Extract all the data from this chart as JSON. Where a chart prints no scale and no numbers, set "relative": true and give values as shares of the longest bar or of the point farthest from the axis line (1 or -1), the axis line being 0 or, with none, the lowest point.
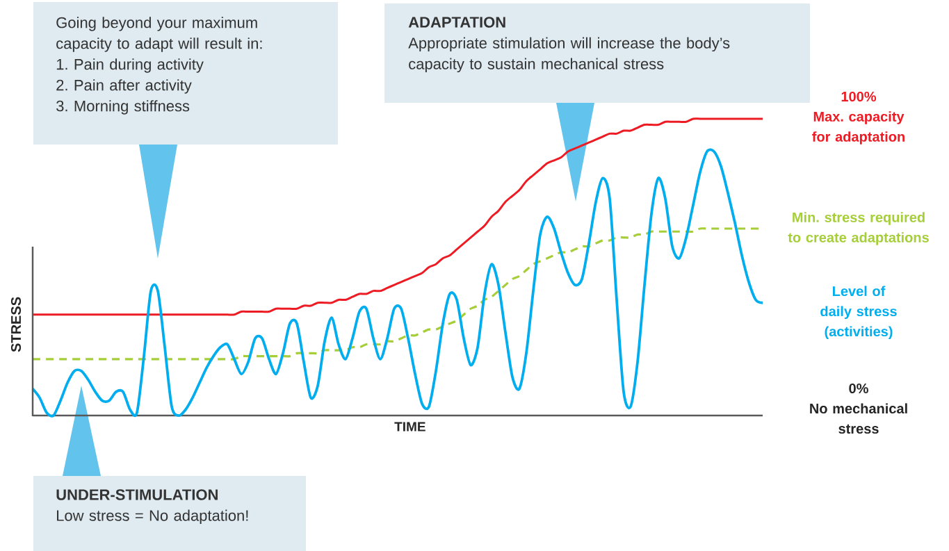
{
  "chart_data": {
    "type": "line",
    "relative": true,
    "xlabel": "TIME",
    "ylabel": "STRESS",
    "categories": [
      null,
      null,
      null,
      null,
      null,
      null,
      null,
      null,
      null,
      null,
      null,
      null,
      null,
      null,
      null,
      null,
      null,
      null,
      null,
      null,
      null,
      null,
      null,
      null,
      null,
      null,
      null,
      null,
      null,
      null,
      null,
      null,
      null,
      null,
      null,
      null,
      null,
      null,
      null,
      null,
      null,
      null,
      null,
      null,
      null,
      null,
      null,
      null,
      null,
      null,
      null,
      null,
      null,
      null,
      null,
      null,
      null,
      null,
      null,
      null,
      null,
      null,
      null,
      null,
      null,
      null,
      null,
      null,
      null,
      null,
      null,
      null,
      null,
      null,
      null,
      null,
      null,
      null,
      null,
      null,
      null,
      null,
      null,
      null,
      null,
      null,
      null,
      null,
      null,
      null,
      null,
      null,
      null,
      null,
      null,
      null,
      null,
      null,
      null,
      null,
      null,
      null,
      null,
      null,
      null,
      null
    ],
    "series": [
      {
        "name": "Max. capacity for adaptation",
        "color": "#ed1c24",
        "values": [
          0.34,
          0.34,
          0.34,
          0.34,
          0.34,
          0.34,
          0.34,
          0.34,
          0.34,
          0.34,
          0.34,
          0.34,
          0.34,
          0.34,
          0.34,
          0.34,
          0.34,
          0.34,
          0.34,
          0.34,
          0.34,
          0.34,
          0.34,
          0.34,
          0.34,
          0.34,
          0.34,
          0.34,
          0.34,
          0.34,
          0.35,
          0.35,
          0.35,
          0.35,
          0.35,
          0.36,
          0.36,
          0.36,
          0.36,
          0.37,
          0.37,
          0.38,
          0.38,
          0.38,
          0.39,
          0.39,
          0.4,
          0.41,
          0.41,
          0.42,
          0.42,
          0.43,
          0.44,
          0.45,
          0.46,
          0.47,
          0.48,
          0.5,
          0.51,
          0.53,
          0.54,
          0.56,
          0.58,
          0.6,
          0.62,
          0.64,
          0.67,
          0.69,
          0.72,
          0.74,
          0.76,
          0.79,
          0.81,
          0.83,
          0.85,
          0.86,
          0.87,
          0.89,
          0.9,
          0.91,
          0.92,
          0.93,
          0.94,
          0.95,
          0.95,
          0.96,
          0.96,
          0.97,
          0.98,
          0.98,
          0.98,
          0.99,
          0.99,
          0.99,
          0.99,
          1.0,
          1.0,
          1.0,
          1.0,
          1.0,
          1.0,
          1.0,
          1.0,
          1.0,
          1.0,
          1.0
        ]
      },
      {
        "name": "Min. stress required to create adaptations",
        "color": "#a6ce39",
        "line_style": "dashed",
        "values": [
          0.19,
          0.19,
          0.19,
          0.19,
          0.19,
          0.19,
          0.19,
          0.19,
          0.19,
          0.19,
          0.19,
          0.19,
          0.19,
          0.19,
          0.19,
          0.19,
          0.19,
          0.19,
          0.19,
          0.19,
          0.19,
          0.19,
          0.19,
          0.19,
          0.19,
          0.19,
          0.19,
          0.19,
          0.19,
          0.19,
          0.2,
          0.2,
          0.2,
          0.2,
          0.2,
          0.2,
          0.2,
          0.2,
          0.21,
          0.21,
          0.21,
          0.21,
          0.22,
          0.22,
          0.22,
          0.22,
          0.23,
          0.23,
          0.24,
          0.24,
          0.24,
          0.25,
          0.25,
          0.26,
          0.27,
          0.27,
          0.28,
          0.29,
          0.29,
          0.3,
          0.31,
          0.32,
          0.34,
          0.36,
          0.37,
          0.39,
          0.4,
          0.42,
          0.44,
          0.46,
          0.47,
          0.49,
          0.51,
          0.52,
          0.53,
          0.54,
          0.55,
          0.55,
          0.56,
          0.57,
          0.57,
          0.58,
          0.59,
          0.59,
          0.6,
          0.6,
          0.6,
          0.61,
          0.61,
          0.62,
          0.62,
          0.62,
          0.62,
          0.62,
          0.62,
          0.62,
          0.63,
          0.63,
          0.63,
          0.63,
          0.63,
          0.63,
          0.63,
          0.63,
          0.63,
          0.63
        ]
      },
      {
        "name": "Level of daily stress (activities)",
        "color": "#00aeef",
        "values": [
          0.09,
          0.06,
          0.01,
          0.0,
          0.05,
          0.11,
          0.15,
          0.15,
          0.12,
          0.08,
          0.05,
          0.05,
          0.08,
          0.08,
          0.02,
          0.01,
          0.2,
          0.42,
          0.42,
          0.23,
          0.03,
          0.0,
          0.02,
          0.06,
          0.11,
          0.16,
          0.2,
          0.23,
          0.24,
          0.19,
          0.14,
          0.18,
          0.26,
          0.26,
          0.19,
          0.14,
          0.21,
          0.31,
          0.31,
          0.18,
          0.06,
          0.1,
          0.25,
          0.33,
          0.24,
          0.19,
          0.26,
          0.35,
          0.36,
          0.26,
          0.19,
          0.26,
          0.36,
          0.36,
          0.26,
          0.14,
          0.04,
          0.03,
          0.15,
          0.31,
          0.41,
          0.39,
          0.26,
          0.17,
          0.23,
          0.41,
          0.51,
          0.44,
          0.28,
          0.13,
          0.09,
          0.21,
          0.42,
          0.61,
          0.67,
          0.63,
          0.55,
          0.48,
          0.44,
          0.46,
          0.58,
          0.72,
          0.8,
          0.73,
          0.39,
          0.08,
          0.03,
          0.18,
          0.44,
          0.68,
          0.8,
          0.73,
          0.57,
          0.53,
          0.6,
          0.71,
          0.82,
          0.89,
          0.89,
          0.84,
          0.75,
          0.65,
          0.54,
          0.45,
          0.39,
          0.38
        ]
      }
    ],
    "annotations": [
      "Going beyond your maximum capacity to adapt will result in:",
      "1. Pain during activity",
      "2. Pain after activity",
      "3. Morning stiffness",
      "ADAPTATION",
      "Appropriate stimulation will increase the body’s capacity to sustain mechanical stress",
      "UNDER-STIMULATION",
      "Low stress = No adaptation!",
      "100%",
      "0%",
      "No mechanical stress"
    ]
  }
}
